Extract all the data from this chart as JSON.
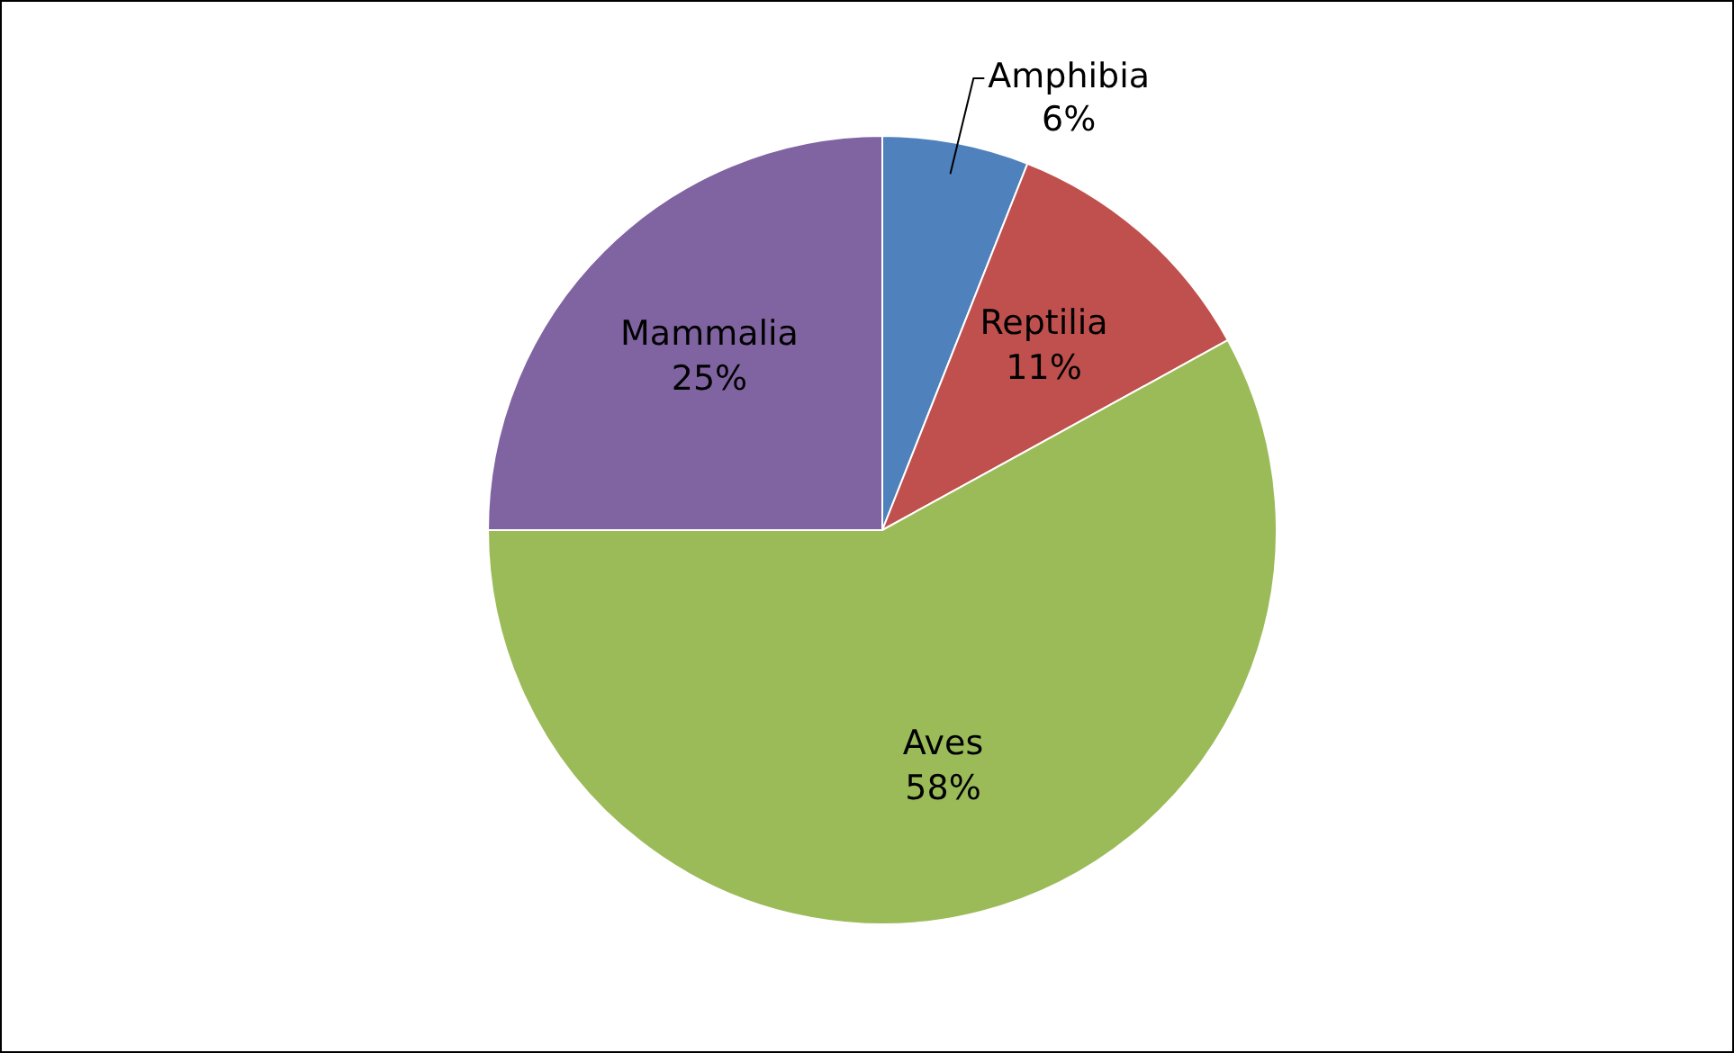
{
  "chart_data": {
    "type": "pie",
    "categories": [
      "Amphibia",
      "Reptilia",
      "Aves",
      "Mammalia"
    ],
    "values": [
      6,
      11,
      58,
      25
    ],
    "colors": [
      "#4f81bd",
      "#c0504d",
      "#9bbb59",
      "#8064a2"
    ],
    "value_labels": [
      "6%",
      "11%",
      "58%",
      "25%"
    ],
    "legend": false
  }
}
